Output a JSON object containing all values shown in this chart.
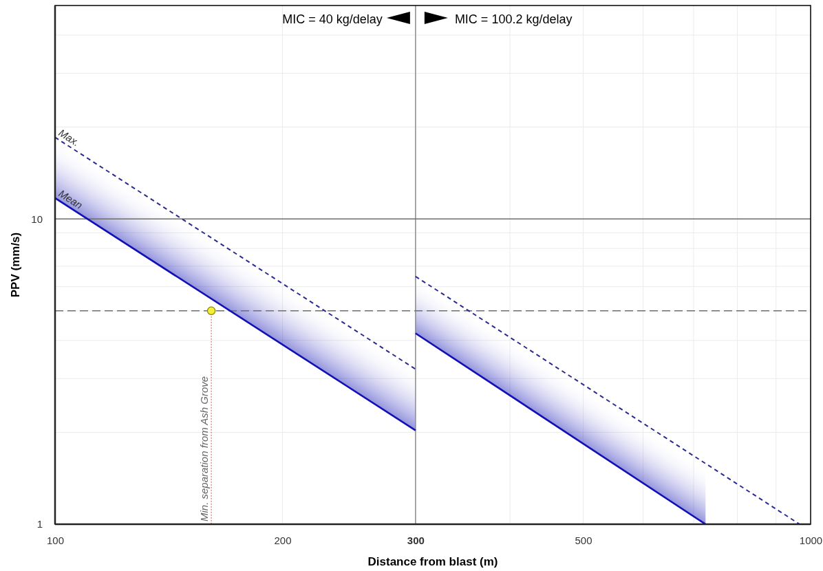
{
  "chart_data": {
    "type": "line",
    "xlabel": "Distance from blast (m)",
    "ylabel": "PPV (mm/s)",
    "log": "xy",
    "grid": true,
    "xlim": [
      100,
      1000
    ],
    "ylim": [
      1,
      50
    ],
    "xticks": [
      100,
      200,
      300,
      {
        "value": 400,
        "label": null
      },
      500,
      {
        "value": 600,
        "label": null
      },
      {
        "value": 700,
        "label": null
      },
      {
        "value": 800,
        "label": null
      },
      {
        "value": 900,
        "label": null
      },
      1000
    ],
    "yticks": [
      1,
      {
        "value": 2,
        "label": null
      },
      {
        "value": 3,
        "label": null
      },
      {
        "value": 4,
        "label": null
      },
      {
        "value": 5,
        "label": null
      },
      {
        "value": 6,
        "label": null
      },
      {
        "value": 7,
        "label": null
      },
      {
        "value": 8,
        "label": null
      },
      {
        "value": 9,
        "label": null
      },
      10,
      {
        "value": 20,
        "label": null
      },
      {
        "value": 30,
        "label": null
      },
      {
        "value": 40,
        "label": null
      }
    ],
    "series": [
      {
        "name": "Mean",
        "color": "#1010b4",
        "line_style": "solid",
        "x": [
          100,
          300
        ],
        "values": [
          11.7,
          2.03
        ],
        "lower": [
          11.7,
          2.03
        ],
        "upper": [
          18.5,
          3.22
        ]
      },
      {
        "name": "Max.",
        "color": "#2a2a90",
        "line_style": "dashed",
        "x": [
          100,
          300
        ],
        "values": [
          18.5,
          3.22
        ]
      },
      {
        "color": "#1010b4",
        "line_style": "solid",
        "x": [
          300,
          726
        ],
        "values": [
          4.22,
          1
        ],
        "lower": [
          4.22,
          1
        ],
        "upper": [
          6.48,
          1.5
        ]
      },
      {
        "color": "#2a2a90",
        "line_style": "dashed",
        "x": [
          300,
          967
        ],
        "values": [
          6.48,
          1
        ]
      },
      {
        "type": "scatter",
        "marker": "circle",
        "color": "#f2ee3a",
        "x": [
          161
        ],
        "values": [
          5
        ]
      }
    ],
    "ref_lines": [
      {
        "axis": "x",
        "value": 300,
        "color": "#8c8c8c",
        "line_style": "solid"
      },
      {
        "axis": "y",
        "value": 10,
        "color": "#6e6e6e",
        "line_style": "solid"
      },
      {
        "axis": "y",
        "value": 5,
        "color": "#6e6e6e",
        "line_style": "dashed"
      }
    ],
    "annotations": [
      "MIC = 40 kg/delay",
      "MIC = 100.2 kg/delay",
      {
        "text": "Min. separation from Ash Grove",
        "x": 161,
        "y": 5
      }
    ]
  }
}
